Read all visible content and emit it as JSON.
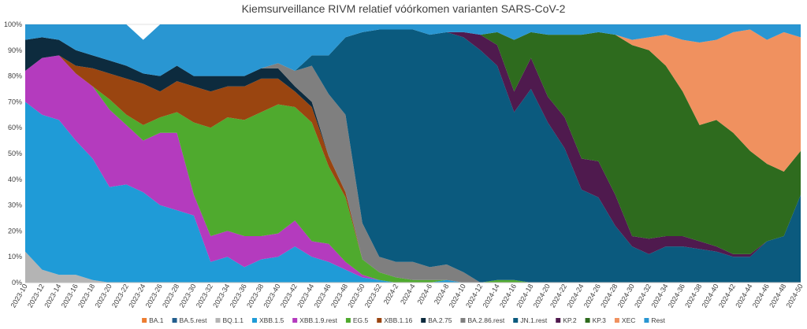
{
  "chart_data": {
    "type": "area",
    "stacked": true,
    "normalized_percent": true,
    "title": "Kiemsurveillance RIVM relatief vóórkomen varianten SARS-CoV-2",
    "xlabel": "",
    "ylabel": "",
    "ylim": [
      0,
      100
    ],
    "y_ticks": [
      "0%",
      "10%",
      "20%",
      "30%",
      "40%",
      "50%",
      "60%",
      "70%",
      "80%",
      "90%",
      "100%"
    ],
    "x_labels": [
      "2023-10",
      "2023-12",
      "2023-14",
      "2023-16",
      "2023-18",
      "2023-20",
      "2023-22",
      "2023-24",
      "2023-26",
      "2023-28",
      "2023-30",
      "2023-32",
      "2023-34",
      "2023-36",
      "2023-38",
      "2023-40",
      "2023-42",
      "2023-44",
      "2023-46",
      "2023-48",
      "2023-50",
      "2023-52",
      "2024-2",
      "2024-4",
      "2024-6",
      "2024-8",
      "2024-10",
      "2024-12",
      "2024-14",
      "2024-16",
      "2024-18",
      "2024-20",
      "2024-22",
      "2024-24",
      "2024-26",
      "2024-28",
      "2024-30",
      "2024-32",
      "2024-34",
      "2024-36",
      "2024-38",
      "2024-40",
      "2024-42",
      "2024-44",
      "2024-46",
      "2024-48",
      "2024-50"
    ],
    "x_anchor": [
      "2023-10",
      "2023-12",
      "2023-14",
      "2023-16",
      "2023-18",
      "2023-20",
      "2023-22",
      "2023-24",
      "2023-26",
      "2023-28",
      "2023-30",
      "2023-32",
      "2023-34",
      "2023-36",
      "2023-38",
      "2023-40",
      "2023-42",
      "2023-44",
      "2023-46",
      "2023-48",
      "2023-50",
      "2023-52",
      "2024-2",
      "2024-4",
      "2024-6",
      "2024-8",
      "2024-10",
      "2024-12",
      "2024-14",
      "2024-16",
      "2024-18",
      "2024-20",
      "2024-22",
      "2024-24",
      "2024-26",
      "2024-28",
      "2024-30",
      "2024-32",
      "2024-34",
      "2024-36",
      "2024-38",
      "2024-40",
      "2024-42",
      "2024-44",
      "2024-46",
      "2024-48",
      "2024-50"
    ],
    "grid": true,
    "legend_position": "bottom",
    "series": [
      {
        "name": "BA.1",
        "color": "#ED7D31",
        "values": [
          0,
          0,
          0,
          0,
          0,
          0,
          0,
          0,
          0,
          0,
          0,
          0,
          0,
          0,
          0,
          0,
          0,
          0,
          0,
          0,
          0,
          0,
          0,
          0,
          0,
          0,
          0,
          0,
          0,
          0,
          0,
          0,
          0,
          0,
          0,
          0,
          0,
          0,
          0,
          0,
          0,
          0,
          0,
          0,
          0,
          0,
          0
        ]
      },
      {
        "name": "BA.5.rest",
        "color": "#225E8E",
        "values": [
          0,
          0,
          0,
          0,
          0,
          0,
          0,
          0,
          0,
          0,
          0,
          0,
          0,
          0,
          0,
          0,
          0,
          0,
          0,
          0,
          0,
          0,
          0,
          0,
          0,
          0,
          0,
          0,
          0,
          0,
          0,
          0,
          0,
          0,
          0,
          0,
          0,
          0,
          0,
          0,
          0,
          0,
          0,
          0,
          0,
          0,
          0
        ]
      },
      {
        "name": "BQ.1.1",
        "color": "#B4B4B4",
        "values": [
          12,
          5,
          3,
          3,
          1,
          0,
          0,
          0,
          0,
          0,
          0,
          0,
          0,
          0,
          0,
          0,
          0,
          0,
          0,
          0,
          0,
          0,
          0,
          0,
          0,
          0,
          0,
          0,
          0,
          0,
          0,
          0,
          0,
          0,
          0,
          0,
          0,
          0,
          0,
          0,
          0,
          0,
          0,
          0,
          0,
          0,
          0
        ]
      },
      {
        "name": "XBB.1.5",
        "color": "#1F9BD7",
        "values": [
          58,
          60,
          60,
          52,
          47,
          37,
          38,
          35,
          30,
          28,
          26,
          8,
          10,
          6,
          9,
          10,
          14,
          10,
          8,
          5,
          2,
          1,
          0,
          0,
          0,
          1,
          0,
          0,
          0,
          0,
          0,
          0,
          0,
          0,
          0,
          0,
          0,
          0,
          0,
          0,
          0,
          0,
          0,
          0,
          0,
          0,
          0
        ]
      },
      {
        "name": "XBB.1.9.rest",
        "color": "#B43BBE",
        "values": [
          12,
          22,
          25,
          26,
          28,
          30,
          23,
          20,
          28,
          30,
          8,
          10,
          10,
          12,
          9,
          9,
          10,
          6,
          7,
          3,
          1,
          0,
          0,
          0,
          0,
          0,
          0,
          0,
          0,
          0,
          0,
          0,
          0,
          0,
          0,
          0,
          0,
          0,
          0,
          0,
          0,
          0,
          0,
          0,
          0,
          0,
          0
        ]
      },
      {
        "name": "EG.5",
        "color": "#4FAA2E",
        "values": [
          0,
          0,
          0,
          0,
          0,
          4,
          4,
          6,
          6,
          8,
          28,
          42,
          44,
          45,
          48,
          50,
          44,
          46,
          30,
          25,
          6,
          3,
          2,
          1,
          1,
          0,
          0,
          0,
          1,
          1,
          0,
          0,
          0,
          0,
          0,
          0,
          0,
          0,
          0,
          0,
          0,
          0,
          0,
          0,
          0,
          0,
          0
        ]
      },
      {
        "name": "XBB.1.16",
        "color": "#9A4510",
        "values": [
          0,
          0,
          0,
          3,
          7,
          10,
          14,
          16,
          10,
          12,
          14,
          14,
          12,
          13,
          13,
          10,
          6,
          6,
          4,
          2,
          0,
          0,
          0,
          0,
          0,
          0,
          0,
          0,
          0,
          0,
          0,
          0,
          0,
          0,
          0,
          0,
          0,
          0,
          0,
          0,
          0,
          0,
          0,
          0,
          0,
          0,
          0
        ]
      },
      {
        "name": "BA.2.75",
        "color": "#0D2B3E",
        "values": [
          12,
          8,
          6,
          6,
          5,
          5,
          5,
          4,
          6,
          6,
          4,
          6,
          4,
          4,
          4,
          4,
          2,
          2,
          0,
          0,
          0,
          0,
          0,
          0,
          0,
          0,
          0,
          0,
          0,
          0,
          0,
          0,
          0,
          0,
          0,
          0,
          0,
          0,
          0,
          0,
          0,
          0,
          0,
          0,
          0,
          0,
          0
        ]
      },
      {
        "name": "BA.2.86.rest",
        "color": "#7F7F7F",
        "values": [
          0,
          0,
          0,
          0,
          0,
          0,
          0,
          0,
          0,
          0,
          0,
          0,
          0,
          0,
          0,
          2,
          6,
          14,
          24,
          30,
          14,
          6,
          6,
          7,
          5,
          6,
          4,
          0,
          0,
          0,
          0,
          0,
          0,
          0,
          0,
          0,
          0,
          0,
          0,
          0,
          0,
          0,
          0,
          0,
          0,
          0,
          0
        ]
      },
      {
        "name": "JN.1.rest",
        "color": "#0B5A7E",
        "values": [
          0,
          0,
          0,
          0,
          0,
          0,
          0,
          0,
          0,
          0,
          0,
          0,
          0,
          0,
          0,
          0,
          0,
          4,
          15,
          30,
          74,
          88,
          90,
          90,
          90,
          90,
          91,
          90,
          83,
          65,
          75,
          62,
          52,
          36,
          33,
          22,
          14,
          11,
          14,
          14,
          13,
          12,
          10,
          10,
          16,
          18,
          34
        ]
      },
      {
        "name": "KP.2",
        "color": "#4F1A4E",
        "values": [
          0,
          0,
          0,
          0,
          0,
          0,
          0,
          0,
          0,
          0,
          0,
          0,
          0,
          0,
          0,
          0,
          0,
          0,
          0,
          0,
          0,
          0,
          0,
          0,
          0,
          0,
          2,
          6,
          8,
          8,
          12,
          10,
          12,
          12,
          14,
          12,
          4,
          6,
          4,
          4,
          3,
          2,
          1,
          1,
          0,
          0,
          0
        ]
      },
      {
        "name": "KP.3",
        "color": "#2E6B1E",
        "values": [
          0,
          0,
          0,
          0,
          0,
          0,
          0,
          0,
          0,
          0,
          0,
          0,
          0,
          0,
          0,
          0,
          0,
          0,
          0,
          0,
          0,
          0,
          0,
          0,
          0,
          0,
          0,
          0,
          5,
          20,
          10,
          24,
          32,
          48,
          50,
          62,
          74,
          73,
          66,
          56,
          45,
          49,
          47,
          40,
          30,
          25,
          17
        ]
      },
      {
        "name": "XEC",
        "color": "#F0915F",
        "values": [
          0,
          0,
          0,
          0,
          0,
          0,
          0,
          0,
          0,
          0,
          0,
          0,
          0,
          0,
          0,
          0,
          0,
          0,
          0,
          0,
          0,
          0,
          0,
          0,
          0,
          0,
          0,
          0,
          0,
          0,
          0,
          0,
          0,
          0,
          0,
          0,
          2,
          5,
          12,
          20,
          32,
          31,
          39,
          47,
          48,
          54,
          44
        ]
      },
      {
        "name": "Rest",
        "color": "#2996D2",
        "values": [
          6,
          5,
          6,
          10,
          12,
          14,
          16,
          13,
          20,
          16,
          20,
          20,
          20,
          20,
          17,
          15,
          18,
          12,
          12,
          5,
          3,
          2,
          2,
          2,
          4,
          3,
          3,
          4,
          3,
          6,
          3,
          4,
          4,
          4,
          3,
          4,
          6,
          5,
          4,
          6,
          7,
          6,
          3,
          2,
          6,
          3,
          5
        ]
      }
    ]
  }
}
